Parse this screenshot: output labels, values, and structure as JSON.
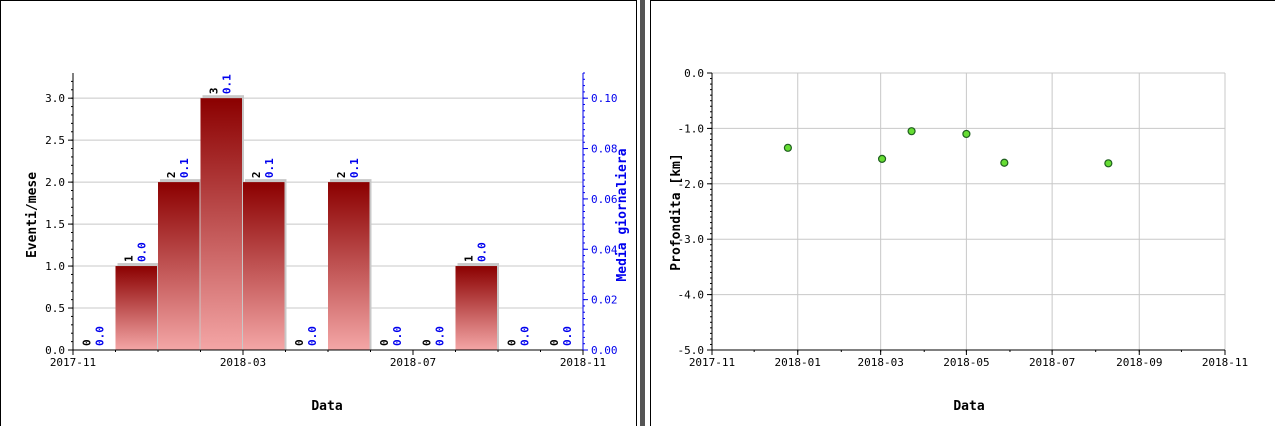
{
  "colors": {
    "bar_top": "#8b0000",
    "bar_bottom": "#f4a6a6",
    "bar_shadow": "#c8c8c8",
    "grid": "#c8c8c8",
    "avg_axis": "#0000ee",
    "count_label": "#000000",
    "avg_label": "#0000ee",
    "marker_fill": "#66dd33",
    "marker_stroke": "#1f5f1f",
    "divider": "#555555"
  },
  "chart_data": [
    {
      "type": "bar",
      "xlabel": "Data",
      "ylabel": "Eventi/mese",
      "y2label": "Media giornaliera",
      "ylim": [
        0,
        3.3
      ],
      "y2lim": [
        0,
        0.11
      ],
      "yticks": [
        "0.0",
        "0.5",
        "1.0",
        "1.5",
        "2.0",
        "2.5",
        "3.0"
      ],
      "y2ticks": [
        "0.00",
        "0.02",
        "0.04",
        "0.06",
        "0.08",
        "0.10"
      ],
      "xticks": [
        "2017-11",
        "2018-03",
        "2018-07",
        "2018-11"
      ],
      "grid": true,
      "categories": [
        "2017-11",
        "2017-12",
        "2018-01",
        "2018-02",
        "2018-03",
        "2018-04",
        "2018-05",
        "2018-06",
        "2018-07",
        "2018-08",
        "2018-09",
        "2018-10"
      ],
      "values": [
        0,
        1,
        2,
        3,
        2,
        0,
        2,
        0,
        0,
        1,
        0,
        0
      ],
      "count_labels": [
        "0",
        "1",
        "2",
        "3",
        "2",
        "0",
        "2",
        "0",
        "0",
        "1",
        "0",
        "0"
      ],
      "avg_labels": [
        "0.0",
        "0.0",
        "0.1",
        "0.1",
        "0.1",
        "0.0",
        "0.1",
        "0.0",
        "0.0",
        "0.0",
        "0.0",
        "0.0"
      ]
    },
    {
      "type": "scatter",
      "xlabel": "Data",
      "ylabel": "Profondita [km]",
      "ylim": [
        -5.0,
        0.0
      ],
      "yticks": [
        "0.0",
        "-1.0",
        "-2.0",
        "-3.0",
        "-4.0",
        "-5.0"
      ],
      "xticks": [
        "2017-11",
        "2018-01",
        "2018-03",
        "2018-05",
        "2018-07",
        "2018-09",
        "2018-11"
      ],
      "grid": true,
      "x": [
        "2017-12-25",
        "2018-03-02",
        "2018-03-23",
        "2018-05-01",
        "2018-05-28",
        "2018-08-10"
      ],
      "y": [
        -1.35,
        -1.55,
        -1.05,
        -1.1,
        -1.62,
        -1.63
      ]
    }
  ]
}
